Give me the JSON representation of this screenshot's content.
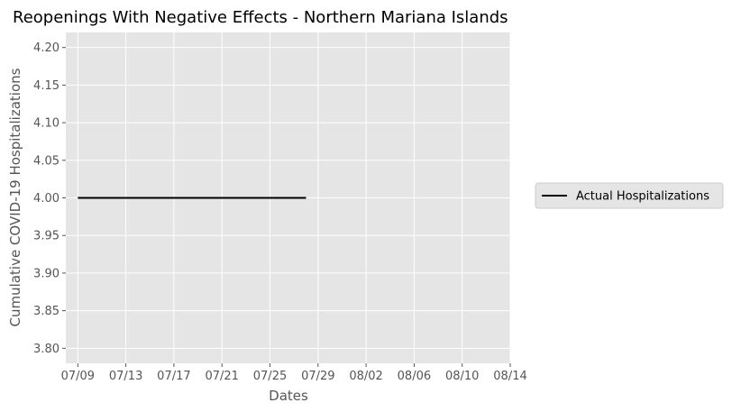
{
  "chart_data": {
    "type": "line",
    "title": "Reopenings With Negative Effects - Northern Mariana Islands",
    "xlabel": "Dates",
    "ylabel": "Cumulative COVID-19 Hospitalizations",
    "x_ticks": [
      "07/09",
      "07/13",
      "07/17",
      "07/21",
      "07/25",
      "07/29",
      "08/02",
      "08/06",
      "08/10",
      "08/14"
    ],
    "y_ticks": [
      "3.80",
      "3.85",
      "3.90",
      "3.95",
      "4.00",
      "4.05",
      "4.10",
      "4.15",
      "4.20"
    ],
    "xlim": [
      "2020-07-08",
      "2020-08-14"
    ],
    "ylim": [
      3.78,
      4.22
    ],
    "grid": true,
    "legend_position": "right",
    "series": [
      {
        "name": "Actual Hospitalizations",
        "color": "#000000",
        "x": [
          "2020-07-09",
          "2020-07-10",
          "2020-07-11",
          "2020-07-12",
          "2020-07-13",
          "2020-07-14",
          "2020-07-15",
          "2020-07-16",
          "2020-07-17",
          "2020-07-18",
          "2020-07-19",
          "2020-07-20",
          "2020-07-21",
          "2020-07-22",
          "2020-07-23",
          "2020-07-24",
          "2020-07-25",
          "2020-07-26",
          "2020-07-27",
          "2020-07-28"
        ],
        "y": [
          4,
          4,
          4,
          4,
          4,
          4,
          4,
          4,
          4,
          4,
          4,
          4,
          4,
          4,
          4,
          4,
          4,
          4,
          4,
          4
        ]
      }
    ]
  },
  "colors": {
    "plot_background": "#e5e5e5",
    "grid": "#ffffff",
    "tick_text": "#555555",
    "legend_background": "#e5e5e5",
    "legend_border": "#cccccc"
  }
}
